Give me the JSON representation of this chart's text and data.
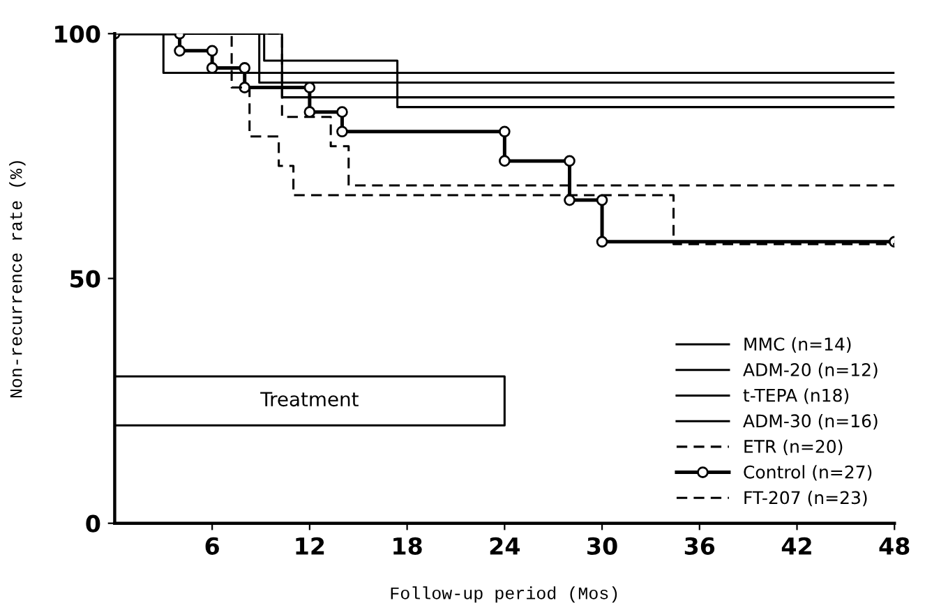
{
  "chart_data": {
    "type": "line",
    "xlabel": "Follow-up period (Mos)",
    "ylabel": "Non-recurrence rate (%)",
    "xlim": [
      0,
      48
    ],
    "ylim": [
      0,
      100
    ],
    "xticks": [
      6,
      12,
      18,
      24,
      30,
      36,
      42,
      48
    ],
    "yticks": [
      0,
      50,
      100
    ],
    "grid": false,
    "legend": "lower right",
    "series": [
      {
        "name": "MMC (n=14)",
        "color": "#000000",
        "line_style": "solid",
        "x": [
          0,
          3,
          3,
          48
        ],
        "values": [
          100,
          100,
          92,
          92
        ]
      },
      {
        "name": "ADM-20 (n=12)",
        "color": "#000000",
        "line_style": "solid",
        "x": [
          0,
          8.9,
          8.9,
          48
        ],
        "values": [
          100,
          100,
          90,
          90
        ]
      },
      {
        "name": "t-TEPA (n18)",
        "color": "#000000",
        "line_style": "solid",
        "x": [
          0,
          10.3,
          10.3,
          48
        ],
        "values": [
          100,
          100,
          87,
          87
        ]
      },
      {
        "name": "ADM-30 (n=16)",
        "color": "#000000",
        "line_style": "solid",
        "x": [
          0,
          9.2,
          9.2,
          17.4,
          17.4,
          48
        ],
        "values": [
          100,
          100,
          94.5,
          94.5,
          85,
          85
        ]
      },
      {
        "name": "ETR (n=20)",
        "color": "#000000",
        "line_style": "dashed",
        "x": [
          0,
          10.3,
          10.3,
          13.3,
          13.3,
          14.4,
          14.4,
          48
        ],
        "values": [
          100,
          100,
          83,
          83,
          77,
          77,
          69,
          69
        ]
      },
      {
        "name": "Control (n=27)",
        "color": "#000000",
        "line_style": "solid",
        "marker": "circle",
        "x": [
          0,
          4,
          4,
          6,
          6,
          8,
          8,
          12,
          12,
          14,
          14,
          24,
          24,
          28,
          28,
          30,
          30,
          48
        ],
        "values": [
          100,
          100,
          96.5,
          96.5,
          93,
          93,
          89,
          89,
          84,
          84,
          80,
          80,
          74,
          74,
          66,
          66,
          57.5,
          57.5
        ]
      },
      {
        "name": "FT-207 (n=23)",
        "color": "#000000",
        "line_style": "dashed",
        "x": [
          0,
          7.2,
          7.2,
          8.3,
          8.3,
          10.1,
          10.1,
          11,
          11,
          34.4,
          34.4,
          48
        ],
        "values": [
          100,
          100,
          89,
          89,
          79,
          79,
          73,
          73,
          67,
          67,
          57,
          57
        ]
      },
      {
        "color": "#000000",
        "line_style": "solid",
        "x": [
          0,
          24,
          24,
          0
        ],
        "values": [
          30,
          30,
          20,
          20
        ]
      }
    ],
    "annotations": [
      "Treatment"
    ]
  }
}
